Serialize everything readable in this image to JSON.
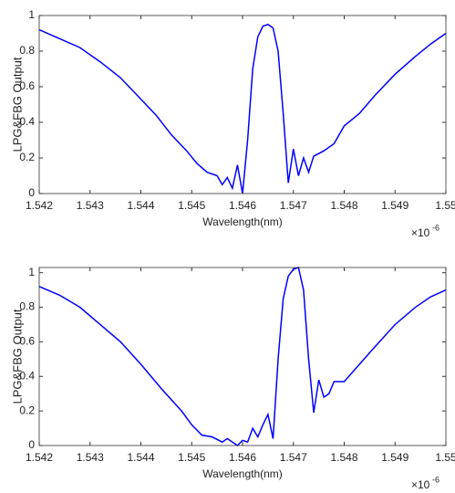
{
  "chart_data": [
    {
      "type": "line",
      "x_label": "Wavelength(nm)",
      "y_label": "LPG&FBG Output",
      "x_multiplier": {
        "base": "×10",
        "exponent": "-6"
      },
      "x": [
        1.542,
        1.5424,
        1.5428,
        1.5432,
        1.5436,
        1.544,
        1.5443,
        1.5446,
        1.5449,
        1.5451,
        1.5453,
        1.5455,
        1.5456,
        1.5457,
        1.5458,
        1.5459,
        1.546,
        1.5461,
        1.5462,
        1.5463,
        1.5464,
        1.5465,
        1.5466,
        1.5467,
        1.5468,
        1.5469,
        1.547,
        1.5471,
        1.5472,
        1.5473,
        1.5474,
        1.5476,
        1.5478,
        1.548,
        1.5483,
        1.5486,
        1.549,
        1.5494,
        1.5497,
        1.55
      ],
      "series": [
        {
          "color": "#0000ff",
          "values": [
            0.92,
            0.87,
            0.82,
            0.74,
            0.65,
            0.53,
            0.44,
            0.33,
            0.24,
            0.17,
            0.12,
            0.1,
            0.05,
            0.09,
            0.03,
            0.16,
            0.0,
            0.3,
            0.7,
            0.88,
            0.94,
            0.95,
            0.93,
            0.8,
            0.45,
            0.06,
            0.25,
            0.1,
            0.2,
            0.12,
            0.21,
            0.24,
            0.28,
            0.38,
            0.45,
            0.55,
            0.67,
            0.77,
            0.84,
            0.9
          ]
        }
      ],
      "xlim": [
        1.542,
        1.55
      ],
      "ylim": [
        0,
        1
      ],
      "xticks": [
        1.542,
        1.543,
        1.544,
        1.545,
        1.546,
        1.547,
        1.548,
        1.549,
        1.55
      ],
      "yticks": [
        0,
        0.2,
        0.4,
        0.6,
        0.8,
        1
      ]
    },
    {
      "type": "line",
      "x_label": "Wavelength(nm)",
      "y_label": "LPG&FBG Output",
      "x_multiplier": {
        "base": "×10",
        "exponent": "-6"
      },
      "x": [
        1.542,
        1.5424,
        1.5428,
        1.5432,
        1.5436,
        1.544,
        1.5444,
        1.5448,
        1.545,
        1.5452,
        1.5454,
        1.5456,
        1.5457,
        1.5459,
        1.546,
        1.5461,
        1.5462,
        1.5463,
        1.5464,
        1.5465,
        1.5466,
        1.5467,
        1.5468,
        1.5469,
        1.547,
        1.5471,
        1.5472,
        1.5473,
        1.5474,
        1.5475,
        1.5476,
        1.5477,
        1.5478,
        1.548,
        1.5483,
        1.5486,
        1.549,
        1.5494,
        1.5497,
        1.55
      ],
      "series": [
        {
          "color": "#0000ff",
          "values": [
            0.92,
            0.87,
            0.8,
            0.7,
            0.6,
            0.47,
            0.33,
            0.2,
            0.12,
            0.06,
            0.05,
            0.02,
            0.04,
            0.0,
            0.03,
            0.02,
            0.1,
            0.05,
            0.12,
            0.18,
            0.04,
            0.5,
            0.85,
            0.98,
            1.02,
            1.03,
            0.9,
            0.5,
            0.19,
            0.38,
            0.28,
            0.3,
            0.37,
            0.37,
            0.47,
            0.57,
            0.7,
            0.8,
            0.86,
            0.9
          ]
        }
      ],
      "xlim": [
        1.542,
        1.55
      ],
      "ylim": [
        0,
        1.03
      ],
      "xticks": [
        1.542,
        1.543,
        1.544,
        1.545,
        1.546,
        1.547,
        1.548,
        1.549,
        1.55
      ],
      "yticks": [
        0,
        0.2,
        0.4,
        0.6,
        0.8,
        1
      ]
    }
  ]
}
